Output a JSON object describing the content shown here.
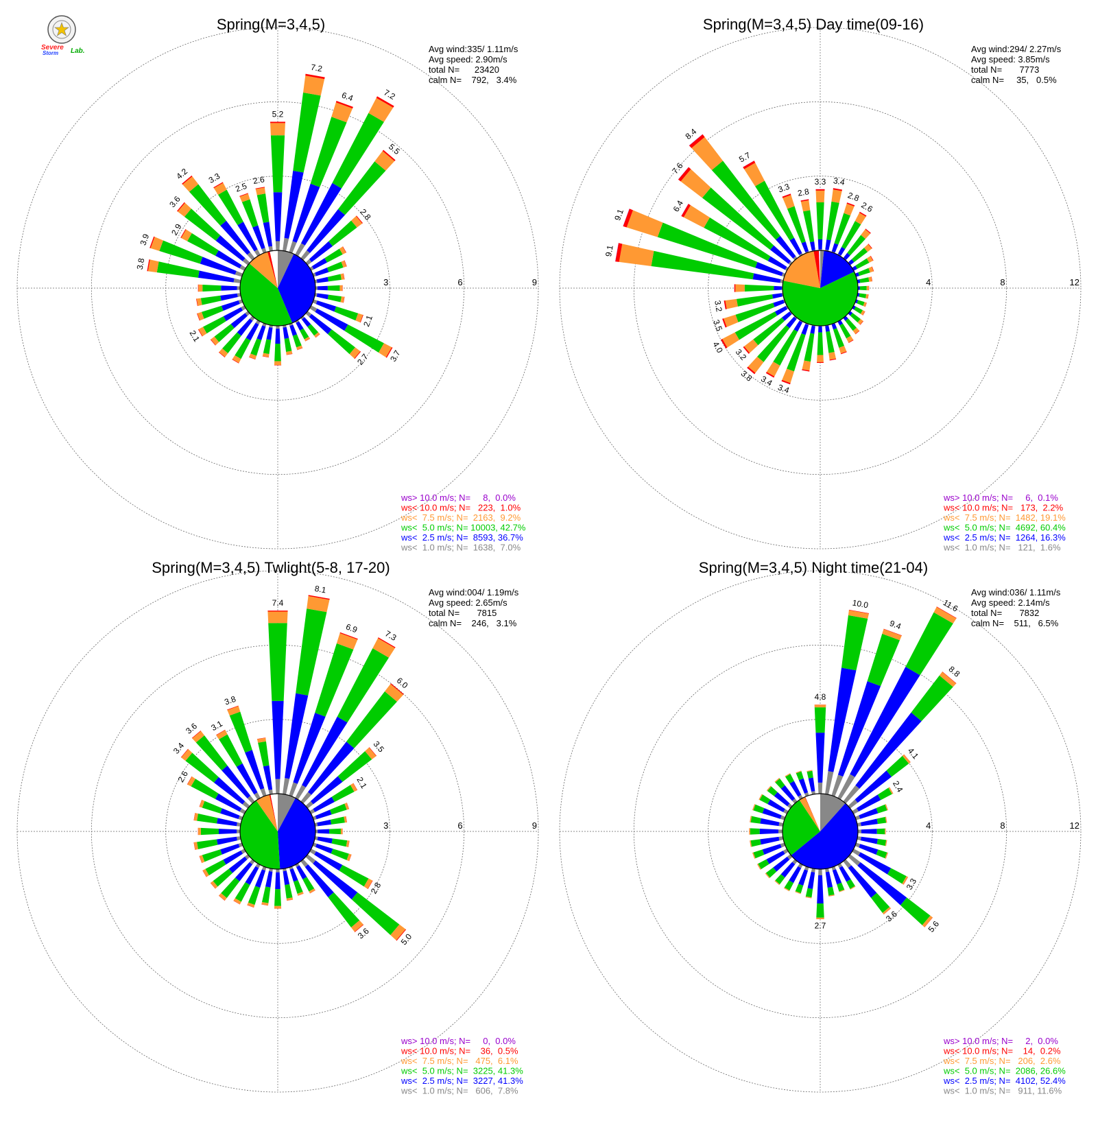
{
  "logo": {
    "text_severe": "Severe",
    "text_storm": "Storm",
    "text_lab": "Lab."
  },
  "colors": {
    "ws_gt_10": "#9900cc",
    "ws_lt_10": "#ff0000",
    "ws_lt_7_5": "#ff9933",
    "ws_lt_5": "#00cc00",
    "ws_lt_2_5": "#0000ff",
    "ws_lt_1": "#888888",
    "grid": "#666666"
  },
  "chart_data": [
    {
      "type": "windrose",
      "title": "Spring(M=3,4,5)",
      "info": [
        "Avg wind:335/ 1.11m/s",
        "Avg speed: 2.90m/s",
        "total N=      23420",
        "calm N=    792,   3.4%"
      ],
      "radial_max": 9,
      "rings": [
        3,
        6,
        9
      ],
      "ring_labels": [
        "3",
        "6",
        "9"
      ],
      "center_pie": [
        {
          "bin": "ws< 1.0 m/s",
          "pct": 7.0
        },
        {
          "bin": "ws< 2.5 m/s",
          "pct": 36.7
        },
        {
          "bin": "ws< 5.0 m/s",
          "pct": 42.7
        },
        {
          "bin": "ws< 7.5 m/s",
          "pct": 9.2
        },
        {
          "bin": "ws< 10.0 m/s",
          "pct": 1.0
        },
        {
          "bin": "ws> 10.0 m/s",
          "pct": 0.0
        },
        {
          "bin": "calm",
          "pct": 3.4
        }
      ],
      "sectors": [
        {
          "dir": 0,
          "total": 5.2,
          "label": "5.2"
        },
        {
          "dir": 10,
          "total": 7.2,
          "label": "7.2"
        },
        {
          "dir": 20,
          "total": 6.4,
          "label": "6.4"
        },
        {
          "dir": 30,
          "total": 7.2,
          "label": "7.2"
        },
        {
          "dir": 40,
          "total": 5.5,
          "label": "5.5"
        },
        {
          "dir": 50,
          "total": 2.8,
          "label": "2.8"
        },
        {
          "dir": 60,
          "total": 1.6,
          "label": ""
        },
        {
          "dir": 70,
          "total": 1.4,
          "label": ""
        },
        {
          "dir": 80,
          "total": 1.2,
          "label": ""
        },
        {
          "dir": 90,
          "total": 1.1,
          "label": ""
        },
        {
          "dir": 100,
          "total": 1.2,
          "label": ""
        },
        {
          "dir": 110,
          "total": 2.1,
          "label": "2.1"
        },
        {
          "dir": 120,
          "total": 3.7,
          "label": "3.7"
        },
        {
          "dir": 130,
          "total": 2.7,
          "label": "2.7"
        },
        {
          "dir": 140,
          "total": 1.0,
          "label": ""
        },
        {
          "dir": 150,
          "total": 0.9,
          "label": ""
        },
        {
          "dir": 160,
          "total": 1.1,
          "label": ""
        },
        {
          "dir": 170,
          "total": 1.2,
          "label": ""
        },
        {
          "dir": 180,
          "total": 1.6,
          "label": ""
        },
        {
          "dir": 190,
          "total": 1.3,
          "label": ""
        },
        {
          "dir": 200,
          "total": 1.5,
          "label": ""
        },
        {
          "dir": 210,
          "total": 1.9,
          "label": ""
        },
        {
          "dir": 220,
          "total": 2.0,
          "label": ""
        },
        {
          "dir": 230,
          "total": 1.9,
          "label": ""
        },
        {
          "dir": 240,
          "total": 2.1,
          "label": "2.1"
        },
        {
          "dir": 250,
          "total": 1.9,
          "label": ""
        },
        {
          "dir": 260,
          "total": 1.8,
          "label": ""
        },
        {
          "dir": 270,
          "total": 1.7,
          "label": ""
        },
        {
          "dir": 280,
          "total": 3.8,
          "label": "3.8"
        },
        {
          "dir": 290,
          "total": 3.9,
          "label": "3.9"
        },
        {
          "dir": 300,
          "total": 2.9,
          "label": "2.9"
        },
        {
          "dir": 310,
          "total": 3.6,
          "label": "3.6"
        },
        {
          "dir": 320,
          "total": 4.2,
          "label": "4.2"
        },
        {
          "dir": 330,
          "total": 3.3,
          "label": "3.3"
        },
        {
          "dir": 340,
          "total": 2.5,
          "label": "2.5"
        },
        {
          "dir": 350,
          "total": 2.6,
          "label": "2.6"
        }
      ],
      "legend": [
        {
          "text": "ws> 10.0 m/s; N=     8,  0.0%",
          "color": "#9900cc"
        },
        {
          "text": "ws< 10.0 m/s; N=   223,  1.0%",
          "color": "#ff0000"
        },
        {
          "text": "ws<  7.5 m/s; N=  2163,  9.2%",
          "color": "#ff9933"
        },
        {
          "text": "ws<  5.0 m/s; N= 10003, 42.7%",
          "color": "#00cc00"
        },
        {
          "text": "ws<  2.5 m/s; N=  8593, 36.7%",
          "color": "#0000ff"
        },
        {
          "text": "ws<  1.0 m/s; N=  1638,  7.0%",
          "color": "#888888"
        }
      ]
    },
    {
      "type": "windrose",
      "title": "Spring(M=3,4,5) Day time(09-16)",
      "info": [
        "Avg wind:294/ 2.27m/s",
        "Avg speed: 3.85m/s",
        "total N=       7773",
        "calm N=     35,   0.5%"
      ],
      "radial_max": 12,
      "rings": [
        4,
        8,
        12
      ],
      "ring_labels": [
        "4",
        "8",
        "12"
      ],
      "center_pie": [
        {
          "bin": "ws< 1.0 m/s",
          "pct": 1.6
        },
        {
          "bin": "ws< 2.5 m/s",
          "pct": 16.3
        },
        {
          "bin": "ws< 5.0 m/s",
          "pct": 60.4
        },
        {
          "bin": "ws< 7.5 m/s",
          "pct": 19.1
        },
        {
          "bin": "ws< 10.0 m/s",
          "pct": 2.2
        },
        {
          "bin": "ws> 10.0 m/s",
          "pct": 0.1
        },
        {
          "bin": "calm",
          "pct": 0.5
        }
      ],
      "sectors": [
        {
          "dir": 0,
          "total": 3.3,
          "label": "3.3"
        },
        {
          "dir": 10,
          "total": 3.4,
          "label": "3.4"
        },
        {
          "dir": 20,
          "total": 2.8,
          "label": "2.8"
        },
        {
          "dir": 30,
          "total": 2.6,
          "label": "2.6"
        },
        {
          "dir": 40,
          "total": 2.0,
          "label": ""
        },
        {
          "dir": 50,
          "total": 1.5,
          "label": ""
        },
        {
          "dir": 60,
          "total": 1.2,
          "label": ""
        },
        {
          "dir": 70,
          "total": 1.0,
          "label": ""
        },
        {
          "dir": 80,
          "total": 0.8,
          "label": ""
        },
        {
          "dir": 90,
          "total": 0.6,
          "label": ""
        },
        {
          "dir": 100,
          "total": 0.6,
          "label": ""
        },
        {
          "dir": 110,
          "total": 0.6,
          "label": ""
        },
        {
          "dir": 120,
          "total": 0.7,
          "label": ""
        },
        {
          "dir": 130,
          "total": 0.9,
          "label": ""
        },
        {
          "dir": 140,
          "total": 1.1,
          "label": ""
        },
        {
          "dir": 150,
          "total": 1.3,
          "label": ""
        },
        {
          "dir": 160,
          "total": 1.7,
          "label": ""
        },
        {
          "dir": 170,
          "total": 1.9,
          "label": ""
        },
        {
          "dir": 180,
          "total": 2.0,
          "label": ""
        },
        {
          "dir": 190,
          "total": 2.5,
          "label": ""
        },
        {
          "dir": 200,
          "total": 3.4,
          "label": "3.4"
        },
        {
          "dir": 210,
          "total": 3.4,
          "label": "3.4"
        },
        {
          "dir": 220,
          "total": 3.8,
          "label": "3.8"
        },
        {
          "dir": 230,
          "total": 3.2,
          "label": "3.2"
        },
        {
          "dir": 240,
          "total": 4.0,
          "label": "4.0"
        },
        {
          "dir": 250,
          "total": 3.5,
          "label": "3.5"
        },
        {
          "dir": 260,
          "total": 3.2,
          "label": "3.2"
        },
        {
          "dir": 270,
          "total": 2.6,
          "label": ""
        },
        {
          "dir": 280,
          "total": 9.1,
          "label": "9.1"
        },
        {
          "dir": 290,
          "total": 9.1,
          "label": "9.1"
        },
        {
          "dir": 300,
          "total": 6.4,
          "label": "6.4"
        },
        {
          "dir": 310,
          "total": 7.6,
          "label": "7.6"
        },
        {
          "dir": 320,
          "total": 8.4,
          "label": "8.4"
        },
        {
          "dir": 330,
          "total": 5.7,
          "label": "5.7"
        },
        {
          "dir": 340,
          "total": 3.3,
          "label": "3.3"
        },
        {
          "dir": 350,
          "total": 2.8,
          "label": "2.8"
        }
      ],
      "legend": [
        {
          "text": "ws> 10.0 m/s; N=     6,  0.1%",
          "color": "#9900cc"
        },
        {
          "text": "ws< 10.0 m/s; N=   173,  2.2%",
          "color": "#ff0000"
        },
        {
          "text": "ws<  7.5 m/s; N=  1482, 19.1%",
          "color": "#ff9933"
        },
        {
          "text": "ws<  5.0 m/s; N=  4692, 60.4%",
          "color": "#00cc00"
        },
        {
          "text": "ws<  2.5 m/s; N=  1264, 16.3%",
          "color": "#0000ff"
        },
        {
          "text": "ws<  1.0 m/s; N=   121,  1.6%",
          "color": "#888888"
        }
      ]
    },
    {
      "type": "windrose",
      "title": "Spring(M=3,4,5) Twlight(5-8, 17-20)",
      "info": [
        "Avg wind:004/ 1.19m/s",
        "Avg speed: 2.65m/s",
        "total N=       7815",
        "calm N=    246,   3.1%"
      ],
      "radial_max": 9,
      "rings": [
        3,
        6,
        9
      ],
      "ring_labels": [
        "3",
        "6",
        "9"
      ],
      "center_pie": [
        {
          "bin": "ws< 1.0 m/s",
          "pct": 7.8
        },
        {
          "bin": "ws< 2.5 m/s",
          "pct": 41.3
        },
        {
          "bin": "ws< 5.0 m/s",
          "pct": 41.3
        },
        {
          "bin": "ws< 7.5 m/s",
          "pct": 6.1
        },
        {
          "bin": "ws< 10.0 m/s",
          "pct": 0.5
        },
        {
          "bin": "ws> 10.0 m/s",
          "pct": 0.0
        },
        {
          "bin": "calm",
          "pct": 3.1
        }
      ],
      "sectors": [
        {
          "dir": 0,
          "total": 7.4,
          "label": "7.4"
        },
        {
          "dir": 10,
          "total": 8.1,
          "label": "8.1"
        },
        {
          "dir": 20,
          "total": 6.9,
          "label": "6.9"
        },
        {
          "dir": 30,
          "total": 7.3,
          "label": "7.3"
        },
        {
          "dir": 40,
          "total": 6.0,
          "label": "6.0"
        },
        {
          "dir": 50,
          "total": 3.5,
          "label": "3.5"
        },
        {
          "dir": 60,
          "total": 2.1,
          "label": "2.1"
        },
        {
          "dir": 70,
          "total": 1.5,
          "label": ""
        },
        {
          "dir": 80,
          "total": 1.3,
          "label": ""
        },
        {
          "dir": 90,
          "total": 1.1,
          "label": ""
        },
        {
          "dir": 100,
          "total": 1.4,
          "label": ""
        },
        {
          "dir": 110,
          "total": 1.6,
          "label": ""
        },
        {
          "dir": 120,
          "total": 2.8,
          "label": "2.8"
        },
        {
          "dir": 130,
          "total": 5.0,
          "label": "5.0"
        },
        {
          "dir": 140,
          "total": 3.6,
          "label": "3.6"
        },
        {
          "dir": 150,
          "total": 1.3,
          "label": ""
        },
        {
          "dir": 160,
          "total": 1.2,
          "label": ""
        },
        {
          "dir": 170,
          "total": 1.3,
          "label": ""
        },
        {
          "dir": 180,
          "total": 1.6,
          "label": ""
        },
        {
          "dir": 190,
          "total": 1.5,
          "label": ""
        },
        {
          "dir": 200,
          "total": 1.7,
          "label": ""
        },
        {
          "dir": 210,
          "total": 1.8,
          "label": ""
        },
        {
          "dir": 220,
          "total": 2.0,
          "label": ""
        },
        {
          "dir": 230,
          "total": 1.9,
          "label": ""
        },
        {
          "dir": 240,
          "total": 1.9,
          "label": ""
        },
        {
          "dir": 250,
          "total": 1.8,
          "label": ""
        },
        {
          "dir": 260,
          "total": 1.9,
          "label": ""
        },
        {
          "dir": 270,
          "total": 1.7,
          "label": ""
        },
        {
          "dir": 280,
          "total": 1.9,
          "label": ""
        },
        {
          "dir": 290,
          "total": 1.8,
          "label": ""
        },
        {
          "dir": 300,
          "total": 2.6,
          "label": "2.6"
        },
        {
          "dir": 310,
          "total": 3.4,
          "label": "3.4"
        },
        {
          "dir": 320,
          "total": 3.6,
          "label": "3.6"
        },
        {
          "dir": 330,
          "total": 3.1,
          "label": "3.1"
        },
        {
          "dir": 340,
          "total": 3.8,
          "label": "3.8"
        },
        {
          "dir": 350,
          "total": 2.3,
          "label": ""
        }
      ],
      "legend": [
        {
          "text": "ws> 10.0 m/s; N=     0,  0.0%",
          "color": "#9900cc"
        },
        {
          "text": "ws< 10.0 m/s; N=    36,  0.5%",
          "color": "#ff0000"
        },
        {
          "text": "ws<  7.5 m/s; N=   475,  6.1%",
          "color": "#ff9933"
        },
        {
          "text": "ws<  5.0 m/s; N=  3225, 41.3%",
          "color": "#00cc00"
        },
        {
          "text": "ws<  2.5 m/s; N=  3227, 41.3%",
          "color": "#0000ff"
        },
        {
          "text": "ws<  1.0 m/s; N=   606,  7.8%",
          "color": "#888888"
        }
      ]
    },
    {
      "type": "windrose",
      "title": "Spring(M=3,4,5) Night time(21-04)",
      "info": [
        "Avg wind:036/ 1.11m/s",
        "Avg speed: 2.14m/s",
        "total N=       7832",
        "calm N=    511,   6.5%"
      ],
      "radial_max": 12,
      "rings": [
        4,
        8,
        12
      ],
      "ring_labels": [
        "4",
        "8",
        "12"
      ],
      "center_pie": [
        {
          "bin": "ws< 1.0 m/s",
          "pct": 11.6
        },
        {
          "bin": "ws< 2.5 m/s",
          "pct": 52.4
        },
        {
          "bin": "ws< 5.0 m/s",
          "pct": 26.6
        },
        {
          "bin": "ws< 7.5 m/s",
          "pct": 2.6
        },
        {
          "bin": "ws< 10.0 m/s",
          "pct": 0.2
        },
        {
          "bin": "ws> 10.0 m/s",
          "pct": 0.0
        },
        {
          "bin": "calm",
          "pct": 6.5
        }
      ],
      "sectors": [
        {
          "dir": 0,
          "total": 4.8,
          "label": "4.8"
        },
        {
          "dir": 10,
          "total": 10.0,
          "label": "10.0"
        },
        {
          "dir": 20,
          "total": 9.4,
          "label": "9.4"
        },
        {
          "dir": 30,
          "total": 11.6,
          "label": "11.6"
        },
        {
          "dir": 40,
          "total": 8.8,
          "label": "8.8"
        },
        {
          "dir": 50,
          "total": 4.1,
          "label": "4.1"
        },
        {
          "dir": 60,
          "total": 2.4,
          "label": "2.4"
        },
        {
          "dir": 70,
          "total": 1.8,
          "label": ""
        },
        {
          "dir": 80,
          "total": 1.6,
          "label": ""
        },
        {
          "dir": 90,
          "total": 1.5,
          "label": ""
        },
        {
          "dir": 100,
          "total": 1.6,
          "label": ""
        },
        {
          "dir": 110,
          "total": 1.8,
          "label": ""
        },
        {
          "dir": 120,
          "total": 3.3,
          "label": "3.3"
        },
        {
          "dir": 130,
          "total": 5.6,
          "label": "5.6"
        },
        {
          "dir": 140,
          "total": 3.6,
          "label": "3.6"
        },
        {
          "dir": 150,
          "total": 1.5,
          "label": ""
        },
        {
          "dir": 160,
          "total": 1.4,
          "label": ""
        },
        {
          "dir": 170,
          "total": 1.5,
          "label": ""
        },
        {
          "dir": 180,
          "total": 2.7,
          "label": "2.7"
        },
        {
          "dir": 190,
          "total": 1.6,
          "label": ""
        },
        {
          "dir": 200,
          "total": 1.5,
          "label": ""
        },
        {
          "dir": 210,
          "total": 1.6,
          "label": ""
        },
        {
          "dir": 220,
          "total": 1.6,
          "label": ""
        },
        {
          "dir": 230,
          "total": 1.7,
          "label": ""
        },
        {
          "dir": 240,
          "total": 1.8,
          "label": ""
        },
        {
          "dir": 250,
          "total": 1.8,
          "label": ""
        },
        {
          "dir": 260,
          "total": 1.8,
          "label": ""
        },
        {
          "dir": 270,
          "total": 1.8,
          "label": ""
        },
        {
          "dir": 280,
          "total": 1.8,
          "label": ""
        },
        {
          "dir": 290,
          "total": 1.8,
          "label": ""
        },
        {
          "dir": 300,
          "total": 1.7,
          "label": ""
        },
        {
          "dir": 310,
          "total": 1.6,
          "label": ""
        },
        {
          "dir": 320,
          "total": 1.6,
          "label": ""
        },
        {
          "dir": 330,
          "total": 1.5,
          "label": ""
        },
        {
          "dir": 340,
          "total": 1.4,
          "label": ""
        },
        {
          "dir": 350,
          "total": 1.3,
          "label": ""
        }
      ],
      "legend": [
        {
          "text": "ws> 10.0 m/s; N=     2,  0.0%",
          "color": "#9900cc"
        },
        {
          "text": "ws< 10.0 m/s; N=    14,  0.2%",
          "color": "#ff0000"
        },
        {
          "text": "ws<  7.5 m/s; N=   206,  2.6%",
          "color": "#ff9933"
        },
        {
          "text": "ws<  5.0 m/s; N=  2086, 26.6%",
          "color": "#00cc00"
        },
        {
          "text": "ws<  2.5 m/s; N=  4102, 52.4%",
          "color": "#0000ff"
        },
        {
          "text": "ws<  1.0 m/s; N=   911, 11.6%",
          "color": "#888888"
        }
      ]
    }
  ]
}
